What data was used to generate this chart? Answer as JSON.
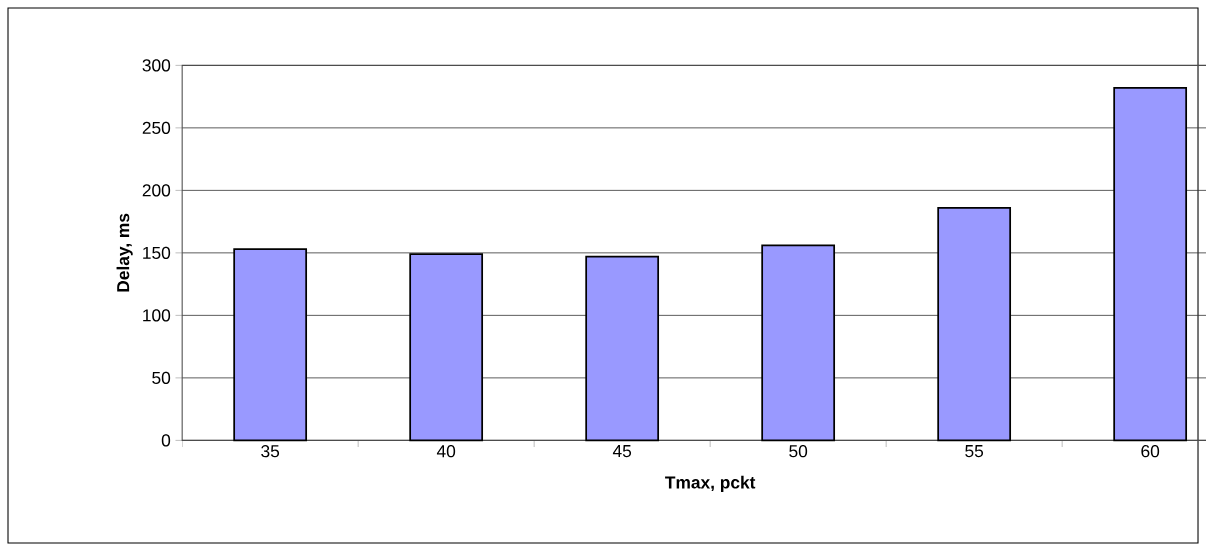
{
  "chart_data": {
    "type": "bar",
    "xlabel": "Tmax, pckt",
    "ylabel": "Delay, ms",
    "categories": [
      "35",
      "40",
      "45",
      "50",
      "55",
      "60"
    ],
    "values": [
      153,
      149,
      147,
      156,
      186,
      282
    ],
    "color": "#9999ff",
    "ylim": [
      0,
      300
    ],
    "yticks": [
      0,
      50,
      100,
      150,
      200,
      250,
      300
    ],
    "grid": "y"
  }
}
